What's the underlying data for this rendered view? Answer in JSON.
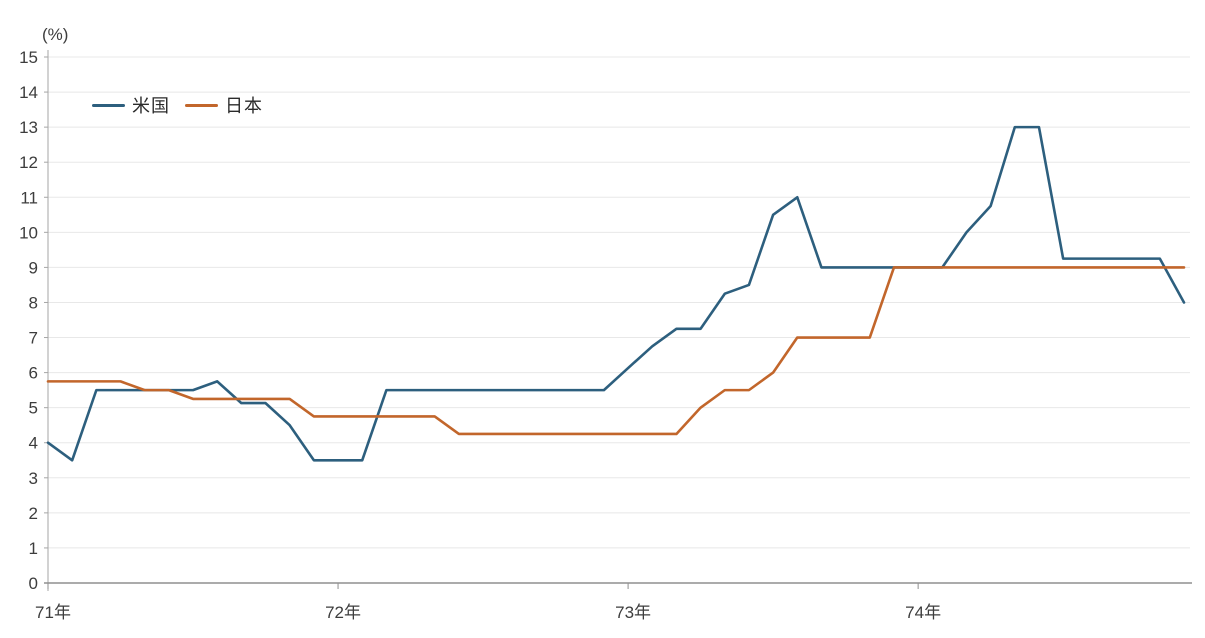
{
  "page": {
    "background_color": "#ffffff"
  },
  "chart_data": {
    "type": "line",
    "unit_label": "(%)",
    "x_axis": {
      "months_total": 48,
      "tick_labels": [
        {
          "label": "71年",
          "month": 0
        },
        {
          "label": "72年",
          "month": 12
        },
        {
          "label": "73年",
          "month": 24
        },
        {
          "label": "74年",
          "month": 36
        }
      ]
    },
    "y_axis": {
      "min": 0,
      "max": 15,
      "ticks": [
        0,
        1,
        2,
        3,
        4,
        5,
        6,
        7,
        8,
        9,
        10,
        11,
        12,
        13,
        14,
        15
      ]
    },
    "grid": {
      "horizontal": true,
      "vertical": false,
      "color": "#e8e8e8"
    },
    "axis_color": "#a6a6a6",
    "text_color": "#3d3d3d",
    "legend": {
      "position": "top-left-inside"
    },
    "series": [
      {
        "key": "us",
        "name": "米国",
        "color": "#2d5f7e",
        "values": [
          4.0,
          3.5,
          5.5,
          5.5,
          5.5,
          5.5,
          5.5,
          5.75,
          5.13,
          5.13,
          4.5,
          3.5,
          3.5,
          3.5,
          5.5,
          5.5,
          5.5,
          5.5,
          5.5,
          5.5,
          5.5,
          5.5,
          5.5,
          5.5,
          6.13,
          6.75,
          7.25,
          7.25,
          8.25,
          8.5,
          10.5,
          11.0,
          9.0,
          9.0,
          9.0,
          9.0,
          9.0,
          9.0,
          10.0,
          10.75,
          13.0,
          13.0,
          9.25,
          9.25,
          9.25,
          9.25,
          9.25,
          8.0
        ]
      },
      {
        "key": "japan",
        "name": "日本",
        "color": "#c2662b",
        "values": [
          5.75,
          5.75,
          5.75,
          5.75,
          5.5,
          5.5,
          5.25,
          5.25,
          5.25,
          5.25,
          5.25,
          4.75,
          4.75,
          4.75,
          4.75,
          4.75,
          4.75,
          4.25,
          4.25,
          4.25,
          4.25,
          4.25,
          4.25,
          4.25,
          4.25,
          4.25,
          4.25,
          5.0,
          5.5,
          5.5,
          6.0,
          7.0,
          7.0,
          7.0,
          7.0,
          9.0,
          9.0,
          9.0,
          9.0,
          9.0,
          9.0,
          9.0,
          9.0,
          9.0,
          9.0,
          9.0,
          9.0,
          9.0
        ]
      }
    ]
  }
}
